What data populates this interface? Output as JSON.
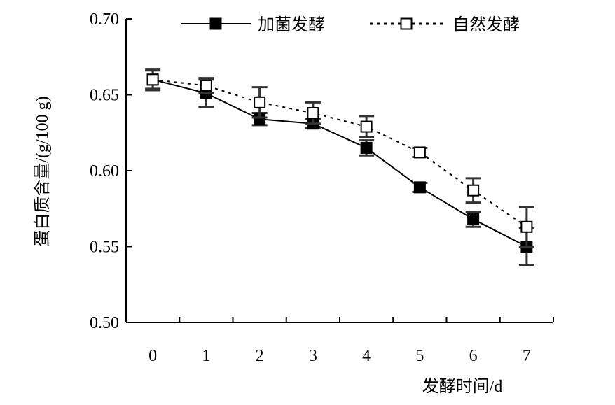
{
  "chart_data": {
    "type": "line",
    "x": [
      0,
      1,
      2,
      3,
      4,
      5,
      6,
      7
    ],
    "xlabel": "发酵时间/d",
    "ylabel": "蛋白质含量/(g/100 g)",
    "xlim": [
      -0.5,
      7.5
    ],
    "ylim": [
      0.5,
      0.7
    ],
    "yticks": [
      "0.50",
      "0.55",
      "0.60",
      "0.65",
      "0.70"
    ],
    "xticks": [
      "0",
      "1",
      "2",
      "3",
      "4",
      "5",
      "6",
      "7"
    ],
    "grid": false,
    "legend_position": "top",
    "series": [
      {
        "name": "加菌发酵",
        "marker": "filled-square",
        "line": "solid",
        "values": [
          0.66,
          0.651,
          0.634,
          0.631,
          0.615,
          0.589,
          0.568,
          0.55
        ],
        "errors": [
          0.007,
          0.009,
          0.004,
          0.003,
          0.005,
          0.003,
          0.005,
          0.012
        ]
      },
      {
        "name": "自然发酵",
        "marker": "open-square",
        "line": "dotted",
        "values": [
          0.66,
          0.656,
          0.645,
          0.638,
          0.629,
          0.612,
          0.587,
          0.563
        ],
        "errors": [
          0.006,
          0.005,
          0.01,
          0.007,
          0.007,
          0.003,
          0.008,
          0.013
        ]
      }
    ]
  }
}
